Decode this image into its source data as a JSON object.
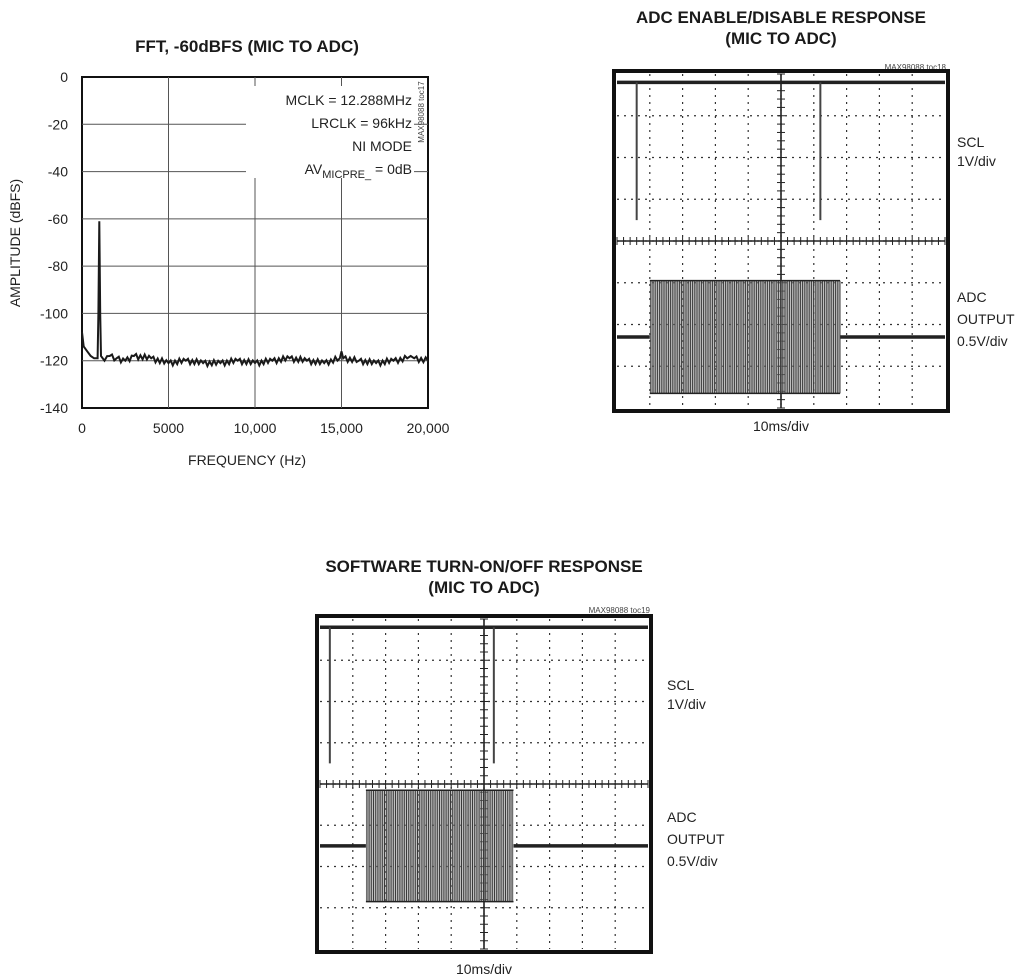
{
  "chart_data": [
    {
      "type": "line",
      "title": "FFT, -60dBFS (MIC TO ADC)",
      "xlabel": "FREQUENCY (Hz)",
      "ylabel": "AMPLITUDE (dBFS)",
      "xlim": [
        0,
        20000
      ],
      "ylim": [
        -140,
        0
      ],
      "x_ticks": [
        "0",
        "5000",
        "10,000",
        "15,000",
        "20,000"
      ],
      "y_ticks": [
        "0",
        "-20",
        "-40",
        "-60",
        "-80",
        "-100",
        "-120",
        "-140"
      ],
      "grid": true,
      "annotations": [
        "MCLK = 12.288MHz",
        "LRCLK = 96kHz",
        "NI MODE"
      ],
      "annotation_av": {
        "main": "AV",
        "sub": "MICPRE_",
        "rest": " = 0dB"
      },
      "tag": "MAX98088 toc17",
      "series": [
        {
          "x": [
            0,
            100,
            300,
            500,
            700,
            900,
            950,
            1000,
            1050,
            1100,
            1300,
            1600,
            2000,
            2500,
            3000,
            4000,
            5000,
            6000,
            7000,
            8000,
            9000,
            10000,
            11000,
            12000,
            13000,
            14000,
            14900,
            15000,
            15100,
            16000,
            17000,
            18000,
            18800,
            19000,
            19200,
            20000
          ],
          "y": [
            -108,
            -114,
            -116,
            -118,
            -119,
            -119,
            -100,
            -61,
            -100,
            -118,
            -120,
            -118,
            -119,
            -120,
            -118,
            -119,
            -121,
            -120,
            -121,
            -121,
            -120,
            -121,
            -120,
            -119,
            -120,
            -121,
            -119,
            -116,
            -119,
            -120,
            -121,
            -120,
            -119,
            -118,
            -119,
            -120
          ]
        }
      ]
    },
    {
      "type": "line",
      "title_lines": [
        "ADC ENABLE/DISABLE RESPONSE",
        "(MIC TO ADC)"
      ],
      "xlabel": "10ms/div",
      "tag": "MAX98088 toc18",
      "grid": true,
      "divisions": [
        10,
        8
      ],
      "channels": [
        {
          "name_lines": [
            "SCL",
            "1V/div"
          ],
          "baseline_div": 0.2,
          "pulses_div": [
            0.6,
            6.2
          ],
          "pulse_bottom_div": 3.5
        },
        {
          "name_lines": [
            "ADC",
            "OUTPUT",
            "0.5V/div"
          ],
          "baseline_div": 6.3,
          "burst_start_div": 1.0,
          "burst_end_div": 6.8,
          "amplitude_div": 1.35
        }
      ]
    },
    {
      "type": "line",
      "title_lines": [
        "SOFTWARE TURN-ON/OFF RESPONSE",
        "(MIC TO ADC)"
      ],
      "xlabel": "10ms/div",
      "tag": "MAX98088 toc19",
      "grid": true,
      "divisions": [
        10,
        8
      ],
      "channels": [
        {
          "name_lines": [
            "SCL",
            "1V/div"
          ],
          "baseline_div": 0.2,
          "pulses_div": [
            0.3,
            5.3
          ],
          "pulse_bottom_div": 3.5
        },
        {
          "name_lines": [
            "ADC",
            "OUTPUT",
            "0.5V/div"
          ],
          "baseline_div": 5.5,
          "burst_start_div": 1.4,
          "burst_end_div": 5.9,
          "amplitude_div": 1.35
        }
      ]
    }
  ]
}
